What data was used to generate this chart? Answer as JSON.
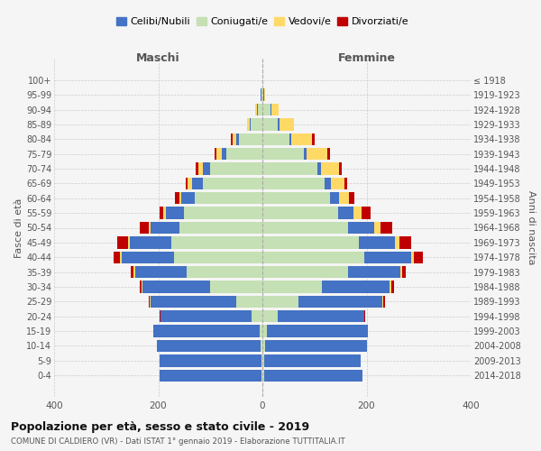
{
  "age_groups": [
    "0-4",
    "5-9",
    "10-14",
    "15-19",
    "20-24",
    "25-29",
    "30-34",
    "35-39",
    "40-44",
    "45-49",
    "50-54",
    "55-59",
    "60-64",
    "65-69",
    "70-74",
    "75-79",
    "80-84",
    "85-89",
    "90-94",
    "95-99",
    "100+"
  ],
  "birth_years": [
    "2014-2018",
    "2009-2013",
    "2004-2008",
    "1999-2003",
    "1994-1998",
    "1989-1993",
    "1984-1988",
    "1979-1983",
    "1974-1978",
    "1969-1973",
    "1964-1968",
    "1959-1963",
    "1954-1958",
    "1949-1953",
    "1944-1948",
    "1939-1943",
    "1934-1938",
    "1929-1933",
    "1924-1928",
    "1919-1923",
    "≤ 1918"
  ],
  "males": {
    "celibi": [
      195,
      195,
      200,
      205,
      175,
      165,
      130,
      100,
      100,
      80,
      55,
      35,
      25,
      20,
      15,
      8,
      5,
      3,
      2,
      1,
      0
    ],
    "coniugati": [
      2,
      2,
      3,
      5,
      20,
      50,
      100,
      145,
      170,
      175,
      160,
      150,
      130,
      115,
      100,
      70,
      45,
      22,
      8,
      2,
      0
    ],
    "vedovi": [
      0,
      0,
      0,
      0,
      1,
      2,
      2,
      2,
      3,
      3,
      3,
      5,
      5,
      8,
      8,
      10,
      8,
      5,
      3,
      1,
      0
    ],
    "divorziati": [
      0,
      0,
      0,
      0,
      1,
      2,
      3,
      5,
      12,
      20,
      18,
      8,
      8,
      5,
      5,
      3,
      3,
      0,
      0,
      0,
      0
    ]
  },
  "females": {
    "nubili": [
      190,
      185,
      195,
      195,
      165,
      160,
      130,
      100,
      90,
      70,
      50,
      30,
      18,
      12,
      8,
      5,
      3,
      3,
      2,
      1,
      0
    ],
    "coniugate": [
      3,
      3,
      5,
      8,
      30,
      70,
      115,
      165,
      195,
      185,
      165,
      145,
      130,
      120,
      105,
      80,
      52,
      30,
      15,
      2,
      0
    ],
    "vedove": [
      0,
      0,
      0,
      0,
      1,
      2,
      2,
      3,
      6,
      8,
      12,
      15,
      18,
      25,
      35,
      40,
      40,
      28,
      15,
      2,
      0
    ],
    "divorziate": [
      0,
      0,
      0,
      0,
      2,
      3,
      5,
      8,
      18,
      22,
      22,
      18,
      10,
      5,
      5,
      5,
      5,
      0,
      0,
      0,
      0
    ]
  },
  "colors": {
    "celibi": "#4472C4",
    "coniugati": "#C5E0B4",
    "vedovi": "#FFD966",
    "divorziati": "#C00000"
  },
  "legend_labels": [
    "Celibi/Nubili",
    "Coniugati/e",
    "Vedovi/e",
    "Divorziati/e"
  ],
  "title": "Popolazione per età, sesso e stato civile - 2019",
  "subtitle": "COMUNE DI CALDIERO (VR) - Dati ISTAT 1° gennaio 2019 - Elaborazione TUTTITALIA.IT",
  "xlabel_left": "Maschi",
  "xlabel_right": "Femmine",
  "ylabel_left": "Fasce di età",
  "ylabel_right": "Anni di nascita",
  "xlim": 400,
  "background_color": "#f5f5f5"
}
